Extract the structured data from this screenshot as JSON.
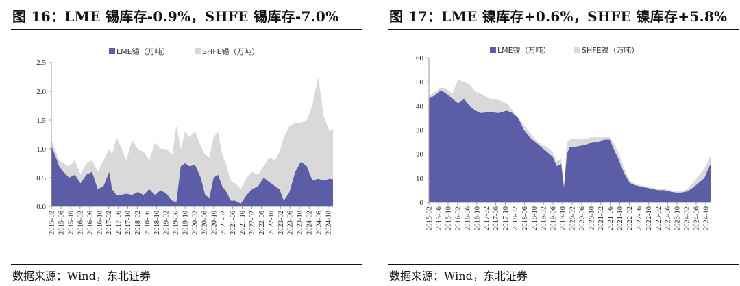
{
  "source_text": "数据来源：Wind，东北证券",
  "colors": {
    "lme": "#5b5ea6",
    "shfe": "#d9d9d9",
    "axis": "#999999"
  },
  "chart_data": [
    {
      "type": "area",
      "title": "图 16：LME 锡库存-0.9%，SHFE 锡库存-7.0%",
      "ylim": [
        0,
        2.5
      ],
      "yticks": [
        "0.0",
        "0.5",
        "1.0",
        "1.5",
        "2.0",
        "2.5"
      ],
      "xlim": [
        2015.08,
        2024.92
      ],
      "xticks": [
        "2015-02",
        "2015-06",
        "2015-10",
        "2016-02",
        "2016-06",
        "2016-10",
        "2017-02",
        "2017-06",
        "2017-10",
        "2018-02",
        "2018-06",
        "2018-10",
        "2019-02",
        "2019-06",
        "2019-10",
        "2020-02",
        "2020-06",
        "2020-10",
        "2021-02",
        "2021-06",
        "2021-10",
        "2022-02",
        "2022-06",
        "2022-10",
        "2023-02",
        "2023-06",
        "2023-10",
        "2024-02",
        "2024-06",
        "2024-10"
      ],
      "legend": [
        "LME锡（万吨）",
        "SHFE锡（万吨）"
      ],
      "series": [
        {
          "name": "LME锡（万吨）",
          "stack": "base",
          "x": [
            2015.08,
            2015.2,
            2015.35,
            2015.5,
            2015.7,
            2015.9,
            2016.1,
            2016.3,
            2016.5,
            2016.7,
            2016.9,
            2017.1,
            2017.2,
            2017.35,
            2017.5,
            2017.7,
            2017.9,
            2018.1,
            2018.3,
            2018.5,
            2018.7,
            2018.9,
            2019.1,
            2019.3,
            2019.45,
            2019.6,
            2019.75,
            2019.9,
            2020.1,
            2020.3,
            2020.45,
            2020.6,
            2020.75,
            2020.9,
            2021.05,
            2021.2,
            2021.35,
            2021.5,
            2021.7,
            2021.9,
            2022.1,
            2022.3,
            2022.5,
            2022.7,
            2022.9,
            2023.05,
            2023.2,
            2023.4,
            2023.6,
            2023.8,
            2024.0,
            2024.2,
            2024.4,
            2024.6,
            2024.8,
            2024.92
          ],
          "values": [
            1.05,
            0.9,
            0.7,
            0.6,
            0.5,
            0.55,
            0.4,
            0.55,
            0.6,
            0.3,
            0.35,
            0.6,
            0.3,
            0.2,
            0.2,
            0.22,
            0.2,
            0.25,
            0.2,
            0.3,
            0.2,
            0.28,
            0.22,
            0.1,
            0.08,
            0.7,
            0.75,
            0.7,
            0.72,
            0.5,
            0.2,
            0.15,
            0.5,
            0.55,
            0.35,
            0.25,
            0.1,
            0.1,
            0.05,
            0.2,
            0.3,
            0.35,
            0.5,
            0.42,
            0.35,
            0.3,
            0.1,
            0.25,
            0.6,
            0.78,
            0.7,
            0.45,
            0.48,
            0.45,
            0.48,
            0.47
          ]
        },
        {
          "name": "SHFE锡（万吨）",
          "stack": "total",
          "x": [
            2015.08,
            2015.2,
            2015.35,
            2015.5,
            2015.7,
            2015.9,
            2016.1,
            2016.3,
            2016.5,
            2016.7,
            2016.9,
            2017.1,
            2017.2,
            2017.35,
            2017.5,
            2017.7,
            2017.9,
            2018.1,
            2018.3,
            2018.5,
            2018.7,
            2018.9,
            2019.1,
            2019.3,
            2019.45,
            2019.6,
            2019.75,
            2019.9,
            2020.1,
            2020.3,
            2020.45,
            2020.6,
            2020.75,
            2020.9,
            2021.05,
            2021.2,
            2021.35,
            2021.5,
            2021.7,
            2021.9,
            2022.1,
            2022.3,
            2022.5,
            2022.7,
            2022.9,
            2023.05,
            2023.2,
            2023.4,
            2023.6,
            2023.8,
            2024.0,
            2024.2,
            2024.4,
            2024.6,
            2024.8,
            2024.92
          ],
          "values": [
            1.15,
            1.0,
            0.8,
            0.75,
            0.7,
            0.8,
            0.55,
            0.75,
            0.8,
            0.6,
            0.8,
            1.0,
            0.9,
            1.2,
            1.05,
            0.8,
            1.15,
            1.0,
            0.95,
            0.8,
            1.1,
            1.0,
            1.0,
            0.9,
            1.4,
            1.0,
            1.3,
            1.2,
            1.3,
            1.05,
            0.9,
            0.85,
            1.2,
            1.3,
            0.9,
            0.7,
            0.45,
            0.4,
            0.3,
            0.5,
            0.6,
            0.55,
            0.7,
            0.85,
            0.8,
            0.95,
            1.2,
            1.4,
            1.45,
            1.45,
            1.5,
            1.75,
            2.25,
            1.55,
            1.3,
            1.35
          ]
        }
      ]
    },
    {
      "type": "area",
      "title": "图 17：LME 镍库存+0.6%，SHFE 镍库存+5.8%",
      "ylim": [
        0,
        60
      ],
      "yticks": [
        "0",
        "10",
        "20",
        "30",
        "40",
        "50",
        "60"
      ],
      "xlim": [
        2015.08,
        2024.92
      ],
      "xticks": [
        "2015-02",
        "2015-06",
        "2015-10",
        "2016-02",
        "2016-06",
        "2016-10",
        "2017-02",
        "2017-06",
        "2017-10",
        "2018-02",
        "2018-06",
        "2018-10",
        "2019-02",
        "2019-06",
        "2019-10",
        "2020-02",
        "2020-06",
        "2020-10",
        "2021-02",
        "2021-06",
        "2021-10",
        "2022-02",
        "2022-06",
        "2022-10",
        "2023-02",
        "2023-06",
        "2023-10",
        "2024-02",
        "2024-06",
        "2024-10"
      ],
      "legend": [
        "LME镍（万吨）",
        "SHFE镍（万吨）"
      ],
      "series": [
        {
          "name": "LME镍（万吨）",
          "stack": "base",
          "x": [
            2015.08,
            2015.3,
            2015.5,
            2015.7,
            2015.9,
            2016.1,
            2016.3,
            2016.5,
            2016.7,
            2016.9,
            2017.2,
            2017.5,
            2017.8,
            2018.0,
            2018.2,
            2018.4,
            2018.6,
            2018.8,
            2019.0,
            2019.2,
            2019.4,
            2019.55,
            2019.7,
            2019.8,
            2019.9,
            2020.0,
            2020.2,
            2020.4,
            2020.6,
            2020.8,
            2021.0,
            2021.2,
            2021.4,
            2021.5,
            2021.7,
            2021.9,
            2022.1,
            2022.3,
            2022.5,
            2022.7,
            2022.9,
            2023.1,
            2023.3,
            2023.5,
            2023.7,
            2023.9,
            2024.1,
            2024.3,
            2024.5,
            2024.7,
            2024.92
          ],
          "values": [
            43,
            44.5,
            46.5,
            45,
            43,
            41,
            43,
            40,
            38,
            37,
            37.5,
            37,
            38,
            37,
            35,
            30,
            27,
            25,
            23,
            21,
            19,
            15,
            16,
            6,
            20,
            23,
            23,
            23.5,
            24,
            25,
            25,
            26,
            26,
            23,
            18,
            12,
            8,
            7,
            6.5,
            6,
            5.5,
            5,
            5,
            4.5,
            4,
            4,
            4.5,
            6,
            8,
            10,
            16
          ]
        },
        {
          "name": "SHFE镍（万吨）",
          "stack": "total",
          "x": [
            2015.08,
            2015.3,
            2015.5,
            2015.7,
            2015.9,
            2016.1,
            2016.3,
            2016.5,
            2016.7,
            2016.9,
            2017.2,
            2017.5,
            2017.8,
            2018.0,
            2018.2,
            2018.4,
            2018.6,
            2018.8,
            2019.0,
            2019.2,
            2019.4,
            2019.55,
            2019.7,
            2019.8,
            2019.9,
            2020.0,
            2020.2,
            2020.4,
            2020.6,
            2020.8,
            2021.0,
            2021.2,
            2021.4,
            2021.5,
            2021.7,
            2021.9,
            2022.1,
            2022.3,
            2022.5,
            2022.7,
            2022.9,
            2023.1,
            2023.3,
            2023.5,
            2023.7,
            2023.9,
            2024.1,
            2024.3,
            2024.5,
            2024.7,
            2024.92
          ],
          "values": [
            44,
            46,
            47.5,
            47,
            45,
            51,
            50,
            49,
            46,
            45,
            43,
            42.5,
            41,
            38,
            35,
            32,
            29,
            26,
            24,
            23,
            21,
            17,
            18,
            7,
            25,
            26,
            26.5,
            26,
            26.5,
            27,
            27,
            27,
            27,
            25,
            21,
            14,
            9,
            7.5,
            7,
            6.5,
            6,
            5.5,
            5.5,
            5,
            4.5,
            4.5,
            5.5,
            8,
            11,
            14,
            19
          ]
        }
      ]
    }
  ]
}
